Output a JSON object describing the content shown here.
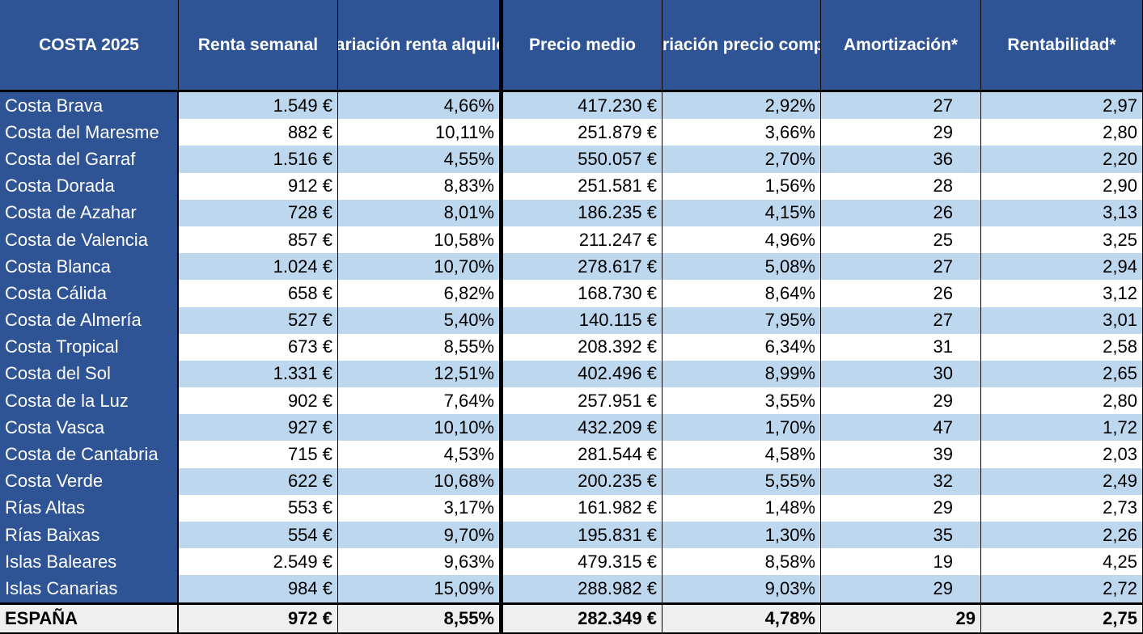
{
  "table": {
    "headers": {
      "costa": "COSTA  2025",
      "renta": "Renta semanal",
      "var_renta": "Variación renta alquiler",
      "precio": "Precio medio",
      "var_precio": "Variación precio compra",
      "amortizacion": "Amortización*",
      "rentabilidad": "Rentabilidad*"
    },
    "rows": [
      {
        "costa": "Costa Brava",
        "renta": "1.549 €",
        "var_renta": "4,66%",
        "precio": "417.230 €",
        "var_precio": "2,92%",
        "amortizacion": "27",
        "rentabilidad": "2,97"
      },
      {
        "costa": "Costa del Maresme",
        "renta": "882 €",
        "var_renta": "10,11%",
        "precio": "251.879 €",
        "var_precio": "3,66%",
        "amortizacion": "29",
        "rentabilidad": "2,80"
      },
      {
        "costa": "Costa del Garraf",
        "renta": "1.516 €",
        "var_renta": "4,55%",
        "precio": "550.057 €",
        "var_precio": "2,70%",
        "amortizacion": "36",
        "rentabilidad": "2,20"
      },
      {
        "costa": "Costa Dorada",
        "renta": "912 €",
        "var_renta": "8,83%",
        "precio": "251.581 €",
        "var_precio": "1,56%",
        "amortizacion": "28",
        "rentabilidad": "2,90"
      },
      {
        "costa": "Costa de Azahar",
        "renta": "728 €",
        "var_renta": "8,01%",
        "precio": "186.235 €",
        "var_precio": "4,15%",
        "amortizacion": "26",
        "rentabilidad": "3,13"
      },
      {
        "costa": "Costa de Valencia",
        "renta": "857 €",
        "var_renta": "10,58%",
        "precio": "211.247 €",
        "var_precio": "4,96%",
        "amortizacion": "25",
        "rentabilidad": "3,25"
      },
      {
        "costa": "Costa Blanca",
        "renta": "1.024 €",
        "var_renta": "10,70%",
        "precio": "278.617 €",
        "var_precio": "5,08%",
        "amortizacion": "27",
        "rentabilidad": "2,94"
      },
      {
        "costa": "Costa Cálida",
        "renta": "658 €",
        "var_renta": "6,82%",
        "precio": "168.730 €",
        "var_precio": "8,64%",
        "amortizacion": "26",
        "rentabilidad": "3,12"
      },
      {
        "costa": "Costa de Almería",
        "renta": "527 €",
        "var_renta": "5,40%",
        "precio": "140.115 €",
        "var_precio": "7,95%",
        "amortizacion": "27",
        "rentabilidad": "3,01"
      },
      {
        "costa": "Costa Tropical",
        "renta": "673 €",
        "var_renta": "8,55%",
        "precio": "208.392 €",
        "var_precio": "6,34%",
        "amortizacion": "31",
        "rentabilidad": "2,58"
      },
      {
        "costa": "Costa del Sol",
        "renta": "1.331 €",
        "var_renta": "12,51%",
        "precio": "402.496 €",
        "var_precio": "8,99%",
        "amortizacion": "30",
        "rentabilidad": "2,65"
      },
      {
        "costa": "Costa de la Luz",
        "renta": "902 €",
        "var_renta": "7,64%",
        "precio": "257.951 €",
        "var_precio": "3,55%",
        "amortizacion": "29",
        "rentabilidad": "2,80"
      },
      {
        "costa": "Costa Vasca",
        "renta": "927 €",
        "var_renta": "10,10%",
        "precio": "432.209 €",
        "var_precio": "1,70%",
        "amortizacion": "47",
        "rentabilidad": "1,72"
      },
      {
        "costa": "Costa de Cantabria",
        "renta": "715 €",
        "var_renta": "4,53%",
        "precio": "281.544 €",
        "var_precio": "4,58%",
        "amortizacion": "39",
        "rentabilidad": "2,03"
      },
      {
        "costa": "Costa Verde",
        "renta": "622 €",
        "var_renta": "10,68%",
        "precio": "200.235 €",
        "var_precio": "5,55%",
        "amortizacion": "32",
        "rentabilidad": "2,49"
      },
      {
        "costa": "Rías Altas",
        "renta": "553 €",
        "var_renta": "3,17%",
        "precio": "161.982 €",
        "var_precio": "1,48%",
        "amortizacion": "29",
        "rentabilidad": "2,73"
      },
      {
        "costa": "Rías Baixas",
        "renta": "554 €",
        "var_renta": "9,70%",
        "precio": "195.831 €",
        "var_precio": "1,30%",
        "amortizacion": "35",
        "rentabilidad": "2,26"
      },
      {
        "costa": "Islas Baleares",
        "renta": "2.549 €",
        "var_renta": "9,63%",
        "precio": "479.315 €",
        "var_precio": "8,58%",
        "amortizacion": "19",
        "rentabilidad": "4,25"
      },
      {
        "costa": "Islas Canarias",
        "renta": "984 €",
        "var_renta": "15,09%",
        "precio": "288.982 €",
        "var_precio": "9,03%",
        "amortizacion": "29",
        "rentabilidad": "2,72"
      }
    ],
    "total": {
      "costa": "ESPAÑA",
      "renta": "972 €",
      "var_renta": "8,55%",
      "precio": "282.349 €",
      "var_precio": "4,78%",
      "amortizacion": "29",
      "rentabilidad": "2,75"
    }
  },
  "colors": {
    "header_bg": "#2f5496",
    "row_stripe": "#bdd7ee",
    "total_bg": "#efefef"
  }
}
